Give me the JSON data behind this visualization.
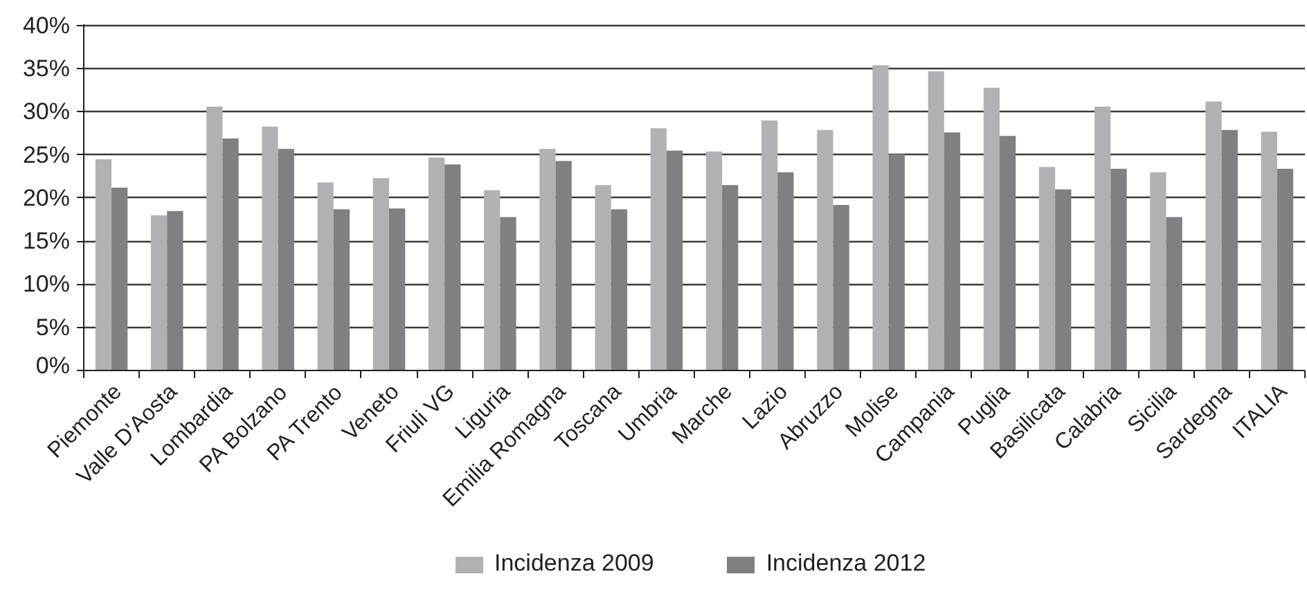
{
  "chart_data": {
    "type": "bar",
    "categories": [
      "Piemonte",
      "Valle D'Aosta",
      "Lombardia",
      "PA Bolzano",
      "PA Trento",
      "Veneto",
      "Friuli VG",
      "Liguria",
      "Emilia Romagna",
      "Toscana",
      "Umbria",
      "Marche",
      "Lazio",
      "Abruzzo",
      "Molise",
      "Campania",
      "Puglia",
      "Basilicata",
      "Calabria",
      "Sicilia",
      "Sardegna",
      "ITALIA"
    ],
    "series": [
      {
        "name": "Incidenza 2009",
        "color": "#b0b1b4",
        "values": [
          24.5,
          18.0,
          30.6,
          28.3,
          21.8,
          22.3,
          24.7,
          20.9,
          25.7,
          21.5,
          28.1,
          25.4,
          29.0,
          27.9,
          35.4,
          34.7,
          32.8,
          23.6,
          30.6,
          23.0,
          31.2,
          27.7
        ]
      },
      {
        "name": "Incidenza 2012",
        "color": "#7f8083",
        "values": [
          21.2,
          18.5,
          26.9,
          25.7,
          18.7,
          18.8,
          23.9,
          17.8,
          24.3,
          18.7,
          25.5,
          21.5,
          23.0,
          19.2,
          25.1,
          27.6,
          27.2,
          21.0,
          23.4,
          17.8,
          27.9,
          23.4
        ]
      }
    ],
    "ylim": [
      0,
      40
    ],
    "yticks": [
      {
        "value": 0,
        "label": "0%"
      },
      {
        "value": 5,
        "label": "5%"
      },
      {
        "value": 10,
        "label": "10%"
      },
      {
        "value": 15,
        "label": "15%"
      },
      {
        "value": 20,
        "label": "20%"
      },
      {
        "value": 25,
        "label": "25%"
      },
      {
        "value": 30,
        "label": "30%"
      },
      {
        "value": 35,
        "label": "35%"
      },
      {
        "value": 40,
        "label": "40%"
      }
    ],
    "grid": "y",
    "legend": "bottom"
  }
}
